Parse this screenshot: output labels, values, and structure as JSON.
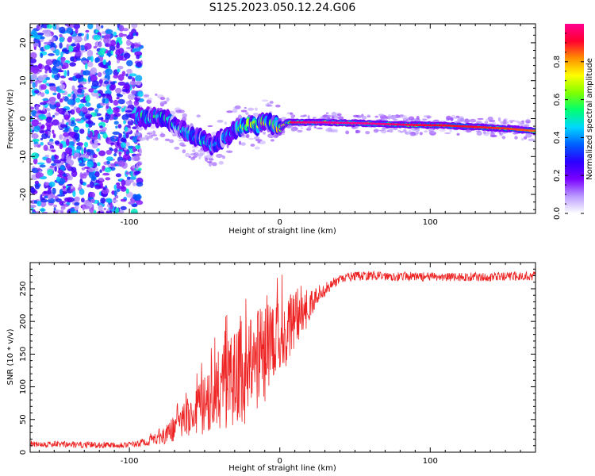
{
  "title": "S125.2023.050.12.24.G06",
  "chart_data": [
    {
      "type": "heatmap",
      "xlabel": "Height of straight line (km)",
      "ylabel": "Frequency (Hz)",
      "xlim": [
        -166,
        170
      ],
      "ylim": [
        -25,
        25
      ],
      "x_ticks": [
        -100,
        0,
        100
      ],
      "y_ticks": [
        -20,
        -10,
        0,
        10,
        20
      ],
      "grid": false,
      "ridge": {
        "x": [
          -95,
          -90,
          -80,
          -72,
          -65,
          -58,
          -50,
          -45,
          -40,
          -35,
          -30,
          -25,
          -20,
          -15,
          -10,
          -5,
          0,
          5,
          10,
          30,
          60,
          90,
          110,
          130,
          150,
          168
        ],
        "y": [
          0.5,
          0.2,
          0.5,
          -1,
          -3,
          -4.5,
          -6,
          -7,
          -6,
          -4.5,
          -3,
          -2,
          -1.5,
          -1.8,
          -0.5,
          -1.8,
          -2.5,
          -1,
          -1,
          -1,
          -1.3,
          -1.7,
          -1.8,
          -2.2,
          -2.6,
          -3.2
        ],
        "amplitude": [
          0.4,
          0.5,
          0.5,
          0.45,
          0.4,
          0.4,
          0.38,
          0.35,
          0.35,
          0.4,
          0.45,
          0.6,
          0.7,
          0.75,
          0.7,
          0.75,
          0.8,
          0.85,
          0.95,
          0.97,
          0.95,
          0.93,
          0.9,
          0.9,
          0.88,
          0.85
        ]
      },
      "colorbar": {
        "label": "Normalized spectral amplitude",
        "range": [
          0,
          1
        ],
        "ticks": [
          "0.0",
          "0.2",
          "0.4",
          "0.6",
          "0.8"
        ],
        "colors": [
          "#ffffff",
          "#b99aff",
          "#7a00ff",
          "#2a00ff",
          "#0060ff",
          "#00d8ff",
          "#00ff70",
          "#80ff00",
          "#ffff00",
          "#ff9000",
          "#ff0030",
          "#ff0090"
        ]
      }
    },
    {
      "type": "line",
      "xlabel": "Height of straight line (km)",
      "ylabel": "SNR (10 * v/v)",
      "xlim": [
        -166,
        170
      ],
      "ylim": [
        0,
        290
      ],
      "x_ticks": [
        -100,
        0,
        100
      ],
      "y_ticks": [
        0,
        50,
        100,
        150,
        200,
        250
      ],
      "grid": false,
      "color": "#ee2222",
      "trend": {
        "x": [
          -166,
          -130,
          -95,
          -85,
          -75,
          -65,
          -55,
          -45,
          -35,
          -25,
          -15,
          -5,
          5,
          15,
          25,
          35,
          45,
          60,
          100,
          140,
          170
        ],
        "y": [
          13,
          11,
          12,
          20,
          28,
          45,
          65,
          85,
          105,
          125,
          150,
          170,
          190,
          215,
          240,
          258,
          268,
          270,
          268,
          268,
          270
        ],
        "noise": [
          5,
          5,
          5,
          10,
          15,
          25,
          40,
          55,
          70,
          80,
          80,
          70,
          50,
          35,
          15,
          8,
          7,
          7,
          7,
          7,
          7
        ]
      }
    }
  ]
}
